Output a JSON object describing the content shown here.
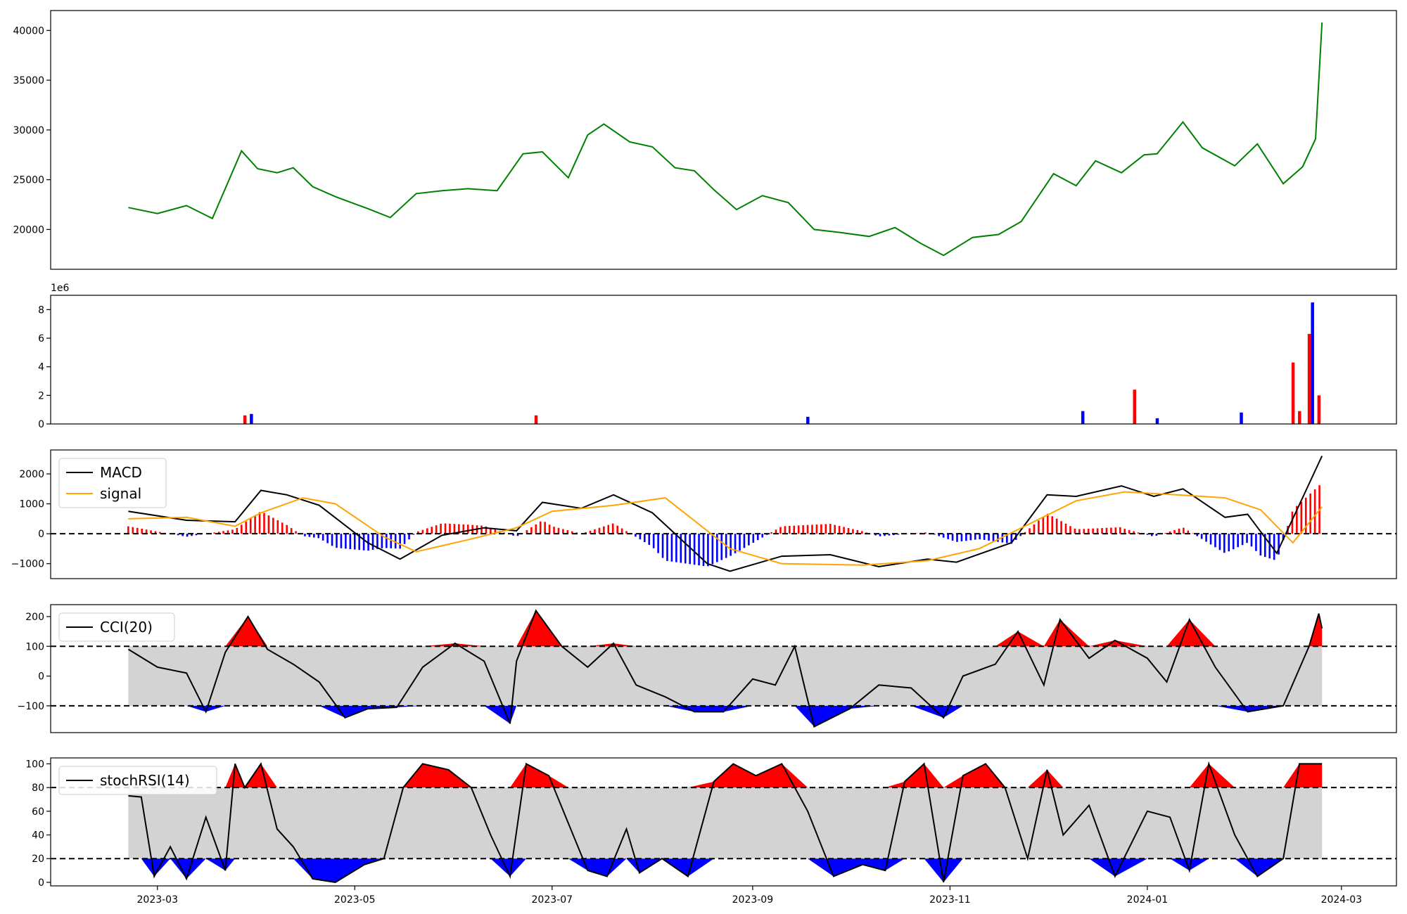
{
  "chart_data": [
    {
      "type": "line",
      "panel": "price",
      "color": "#008000",
      "ylim": [
        16000,
        42000
      ],
      "yticks": [
        20000,
        25000,
        30000,
        35000,
        40000
      ],
      "ytick_labels": [
        "20000",
        "25000",
        "30000",
        "35000",
        "40000"
      ],
      "grid": false,
      "series": [
        {
          "x": [
            "2023-02-20",
            "2023-03-01",
            "2023-03-10",
            "2023-03-18",
            "2023-03-27",
            "2023-04-01",
            "2023-04-07",
            "2023-04-12",
            "2023-04-18",
            "2023-04-25",
            "2023-05-05",
            "2023-05-12",
            "2023-05-20",
            "2023-05-28",
            "2023-06-05",
            "2023-06-14",
            "2023-06-22",
            "2023-06-28",
            "2023-07-06",
            "2023-07-12",
            "2023-07-17",
            "2023-07-25",
            "2023-08-01",
            "2023-08-08",
            "2023-08-14",
            "2023-08-20",
            "2023-08-27",
            "2023-09-04",
            "2023-09-12",
            "2023-09-20",
            "2023-09-28",
            "2023-10-07",
            "2023-10-15",
            "2023-10-23",
            "2023-10-30",
            "2023-11-08",
            "2023-11-16",
            "2023-11-23",
            "2023-12-03",
            "2023-12-10",
            "2023-12-16",
            "2023-12-24",
            "2023-12-31",
            "2024-01-04",
            "2024-01-12",
            "2024-01-18",
            "2024-01-28",
            "2024-02-04",
            "2024-02-12",
            "2024-02-18",
            "2024-02-22",
            "2024-02-24"
          ],
          "y": [
            22200,
            21600,
            22400,
            21100,
            27900,
            26100,
            25700,
            26200,
            24300,
            23300,
            22100,
            21200,
            23600,
            23900,
            24100,
            23900,
            27600,
            27800,
            25200,
            29500,
            30600,
            28800,
            28300,
            26200,
            25900,
            24000,
            22000,
            23400,
            22700,
            20000,
            19700,
            19300,
            20200,
            18600,
            17400,
            19200,
            19500,
            20800,
            25600,
            24400,
            26900,
            25700,
            27500,
            27600,
            30800,
            28200,
            26400,
            28600,
            24600,
            26300,
            29100,
            40800
          ]
        }
      ]
    },
    {
      "type": "bar",
      "panel": "volume",
      "multiplier_label": "1e6",
      "ylim": [
        0,
        9
      ],
      "yticks": [
        0,
        2,
        4,
        6,
        8
      ],
      "ytick_labels": [
        "0",
        "2",
        "4",
        "6",
        "8"
      ],
      "colors": {
        "up": "#ff0000",
        "down": "#0000ff"
      },
      "x": [
        "2023-03-28",
        "2023-03-30",
        "2023-06-26",
        "2023-09-18",
        "2023-12-12",
        "2023-12-28",
        "2024-01-04",
        "2024-01-30",
        "2024-02-15",
        "2024-02-17",
        "2024-02-20",
        "2024-02-21",
        "2024-02-23"
      ],
      "values": [
        0.6,
        0.7,
        0.6,
        0.5,
        0.9,
        2.4,
        0.4,
        0.8,
        4.3,
        0.9,
        6.3,
        8.5,
        2.0
      ],
      "direction": [
        "up",
        "down",
        "up",
        "down",
        "down",
        "up",
        "down",
        "down",
        "up",
        "up",
        "up",
        "down",
        "up"
      ]
    },
    {
      "type": "line",
      "panel": "macd",
      "ylim": [
        -1500,
        2800
      ],
      "yticks": [
        -1000,
        0,
        1000,
        2000
      ],
      "ytick_labels": [
        "−1000",
        "0",
        "1000",
        "2000"
      ],
      "hlines": [
        0
      ],
      "legend": {
        "placement": "top-left"
      },
      "series": [
        {
          "name": "MACD",
          "color": "#000000",
          "x": [
            "2023-02-20",
            "2023-03-10",
            "2023-03-25",
            "2023-04-02",
            "2023-04-10",
            "2023-04-20",
            "2023-05-05",
            "2023-05-15",
            "2023-05-28",
            "2023-06-10",
            "2023-06-20",
            "2023-06-28",
            "2023-07-10",
            "2023-07-20",
            "2023-08-01",
            "2023-08-18",
            "2023-08-25",
            "2023-09-10",
            "2023-09-25",
            "2023-10-10",
            "2023-10-25",
            "2023-11-03",
            "2023-11-20",
            "2023-12-01",
            "2023-12-10",
            "2023-12-24",
            "2024-01-03",
            "2024-01-12",
            "2024-01-25",
            "2024-02-01",
            "2024-02-10",
            "2024-02-24"
          ],
          "y": [
            750,
            450,
            400,
            1450,
            1300,
            950,
            -300,
            -850,
            -50,
            200,
            100,
            1050,
            850,
            1300,
            700,
            -1000,
            -1250,
            -750,
            -700,
            -1100,
            -850,
            -950,
            -300,
            1300,
            1250,
            1600,
            1250,
            1500,
            550,
            650,
            -650,
            2600
          ]
        },
        {
          "name": "signal",
          "color": "#ffa500",
          "x": [
            "2023-02-20",
            "2023-03-10",
            "2023-03-25",
            "2023-04-02",
            "2023-04-15",
            "2023-04-25",
            "2023-05-10",
            "2023-05-20",
            "2023-06-05",
            "2023-06-20",
            "2023-07-01",
            "2023-07-20",
            "2023-08-05",
            "2023-08-25",
            "2023-09-10",
            "2023-10-05",
            "2023-10-25",
            "2023-11-10",
            "2023-11-25",
            "2023-12-10",
            "2023-12-25",
            "2024-01-10",
            "2024-01-25",
            "2024-02-05",
            "2024-02-15",
            "2024-02-24"
          ],
          "y": [
            500,
            550,
            250,
            700,
            1200,
            1000,
            -100,
            -600,
            -200,
            200,
            750,
            950,
            1200,
            -500,
            -1000,
            -1050,
            -900,
            -500,
            300,
            1100,
            1400,
            1300,
            1200,
            800,
            -300,
            900
          ]
        }
      ]
    },
    {
      "type": "line",
      "panel": "cci",
      "ylim": [
        -190,
        240
      ],
      "yticks": [
        -100,
        0,
        100,
        200
      ],
      "ytick_labels": [
        "−100",
        "0",
        "100",
        "200"
      ],
      "hlines": [
        100,
        -100
      ],
      "fill_band": {
        "low": -100,
        "high": 100,
        "color": "#d3d3d3"
      },
      "overbought_color": "#ff0000",
      "oversold_color": "#0000ff",
      "legend": {
        "placement": "top-left"
      },
      "series": [
        {
          "name": "CCI(20)",
          "color": "#000000",
          "x": [
            "2023-02-20",
            "2023-03-01",
            "2023-03-10",
            "2023-03-16",
            "2023-03-22",
            "2023-03-29",
            "2023-04-04",
            "2023-04-12",
            "2023-04-20",
            "2023-04-28",
            "2023-05-05",
            "2023-05-14",
            "2023-05-22",
            "2023-06-01",
            "2023-06-10",
            "2023-06-18",
            "2023-06-20",
            "2023-06-26",
            "2023-07-04",
            "2023-07-12",
            "2023-07-20",
            "2023-07-27",
            "2023-08-05",
            "2023-08-14",
            "2023-08-23",
            "2023-09-01",
            "2023-09-08",
            "2023-09-14",
            "2023-09-20",
            "2023-10-01",
            "2023-10-10",
            "2023-10-20",
            "2023-10-30",
            "2023-11-05",
            "2023-11-15",
            "2023-11-22",
            "2023-11-30",
            "2023-12-05",
            "2023-12-14",
            "2023-12-22",
            "2024-01-01",
            "2024-01-07",
            "2024-01-14",
            "2024-01-22",
            "2024-02-01",
            "2024-02-12",
            "2024-02-20",
            "2024-02-23",
            "2024-02-24"
          ],
          "y": [
            90,
            30,
            10,
            -120,
            80,
            200,
            90,
            40,
            -20,
            -140,
            -110,
            -105,
            30,
            110,
            50,
            -160,
            50,
            220,
            100,
            30,
            110,
            -30,
            -70,
            -120,
            -120,
            -10,
            -30,
            100,
            -170,
            -110,
            -30,
            -40,
            -140,
            0,
            40,
            150,
            -30,
            190,
            60,
            120,
            60,
            -20,
            190,
            30,
            -120,
            -100,
            100,
            210,
            160
          ]
        }
      ]
    },
    {
      "type": "line",
      "panel": "stochrsi",
      "ylim": [
        -3,
        105
      ],
      "yticks": [
        0,
        20,
        40,
        60,
        80,
        100
      ],
      "ytick_labels": [
        "0",
        "20",
        "40",
        "60",
        "80",
        "100"
      ],
      "hlines": [
        80,
        20
      ],
      "fill_band": {
        "low": 20,
        "high": 80,
        "color": "#d3d3d3"
      },
      "overbought_color": "#ff0000",
      "oversold_color": "#0000ff",
      "legend": {
        "placement": "top-left"
      },
      "series": [
        {
          "name": "stochRSI(14)",
          "color": "#000000",
          "x": [
            "2023-02-20",
            "2023-02-24",
            "2023-02-28",
            "2023-03-05",
            "2023-03-10",
            "2023-03-16",
            "2023-03-22",
            "2023-03-25",
            "2023-03-28",
            "2023-04-02",
            "2023-04-07",
            "2023-04-12",
            "2023-04-18",
            "2023-04-25",
            "2023-05-04",
            "2023-05-10",
            "2023-05-16",
            "2023-05-22",
            "2023-05-30",
            "2023-06-06",
            "2023-06-12",
            "2023-06-18",
            "2023-06-23",
            "2023-06-30",
            "2023-07-06",
            "2023-07-12",
            "2023-07-18",
            "2023-07-24",
            "2023-07-28",
            "2023-08-04",
            "2023-08-12",
            "2023-08-20",
            "2023-08-26",
            "2023-09-02",
            "2023-09-10",
            "2023-09-18",
            "2023-09-26",
            "2023-10-05",
            "2023-10-12",
            "2023-10-18",
            "2023-10-24",
            "2023-10-30",
            "2023-11-05",
            "2023-11-12",
            "2023-11-18",
            "2023-11-25",
            "2023-12-01",
            "2023-12-06",
            "2023-12-14",
            "2023-12-22",
            "2024-01-01",
            "2024-01-08",
            "2024-01-14",
            "2024-01-20",
            "2024-01-28",
            "2024-02-04",
            "2024-02-12",
            "2024-02-17",
            "2024-02-24"
          ],
          "y": [
            73,
            72,
            5,
            30,
            3,
            55,
            10,
            100,
            80,
            100,
            45,
            30,
            3,
            0,
            15,
            20,
            80,
            100,
            95,
            80,
            40,
            5,
            100,
            90,
            50,
            10,
            5,
            45,
            8,
            20,
            5,
            85,
            100,
            90,
            100,
            60,
            5,
            15,
            10,
            85,
            100,
            0,
            90,
            100,
            80,
            20,
            95,
            40,
            65,
            5,
            60,
            55,
            10,
            100,
            40,
            5,
            20,
            100,
            100
          ]
        }
      ]
    }
  ],
  "xaxis": {
    "tick_labels": [
      "2023-03",
      "2023-05",
      "2023-07",
      "2023-09",
      "2023-11",
      "2024-01",
      "2024-03"
    ],
    "tick_dates": [
      "2023-03-01",
      "2023-05-01",
      "2023-07-01",
      "2023-09-01",
      "2023-11-01",
      "2024-01-01",
      "2024-03-01"
    ],
    "range": [
      "2023-01-27",
      "2024-03-18"
    ]
  }
}
